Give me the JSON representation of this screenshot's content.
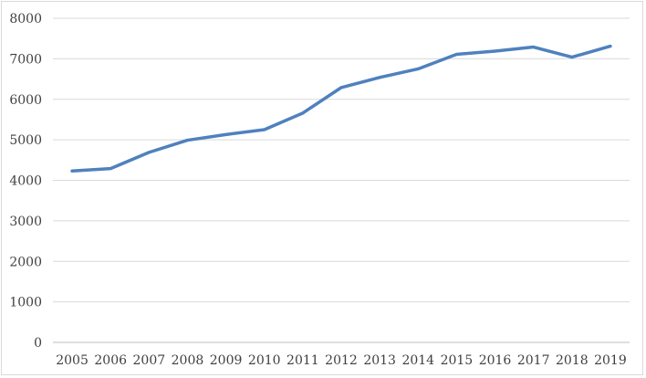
{
  "chart_data": {
    "type": "line",
    "title": "",
    "xlabel": "",
    "ylabel": "",
    "ylim": [
      0,
      8000
    ],
    "ytick_step": 1000,
    "grid": true,
    "legend": "none",
    "categories": [
      "2005",
      "2006",
      "2007",
      "2008",
      "2009",
      "2010",
      "2011",
      "2012",
      "2013",
      "2014",
      "2015",
      "2016",
      "2017",
      "2018",
      "2019"
    ],
    "series": [
      {
        "color": "#4f81bd",
        "values": [
          4230,
          4290,
          4690,
          4990,
          5130,
          5250,
          5660,
          6290,
          6540,
          6750,
          7110,
          7190,
          7290,
          7040,
          7310
        ]
      }
    ]
  }
}
